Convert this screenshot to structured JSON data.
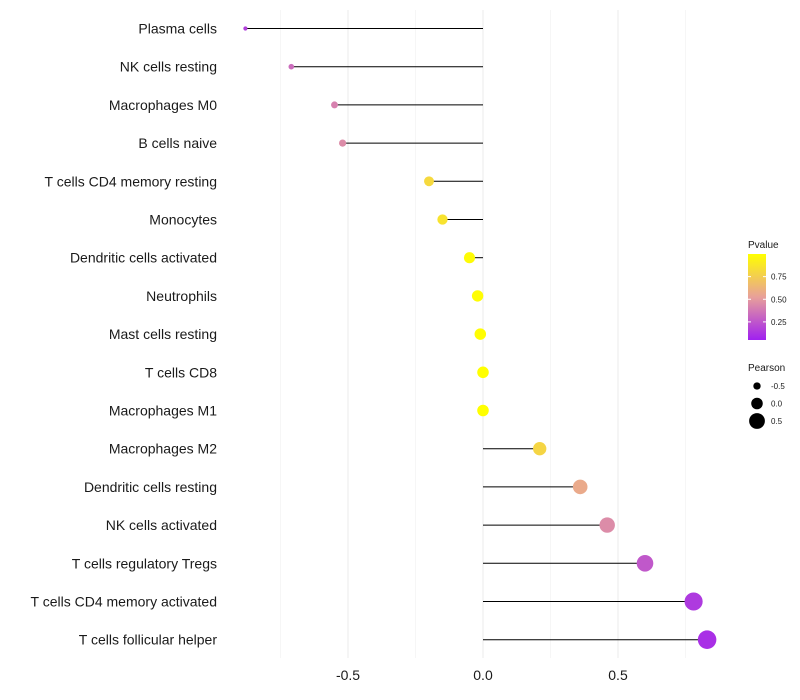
{
  "chart_data": {
    "type": "lollipop",
    "xlim": [
      -0.9,
      0.85
    ],
    "x_ticks": [
      -0.5,
      0.0,
      0.5
    ],
    "x_tick_labels": [
      "-0.5",
      "0.0",
      "0.5"
    ],
    "categories": [
      "Plasma cells",
      "NK cells resting",
      "Macrophages M0",
      "B cells naive",
      "T cells CD4 memory resting",
      "Monocytes",
      "Dendritic cells activated",
      "Neutrophils",
      "Mast cells resting",
      "T cells CD8",
      "Macrophages M1",
      "Macrophages M2",
      "Dendritic cells resting",
      "NK cells activated",
      "T cells regulatory  Tregs",
      "T cells CD4 memory activated",
      "T cells follicular helper"
    ],
    "pearson": [
      -0.88,
      -0.71,
      -0.55,
      -0.52,
      -0.2,
      -0.15,
      -0.05,
      -0.02,
      -0.01,
      0.0,
      0.0,
      0.21,
      0.36,
      0.46,
      0.6,
      0.78,
      0.83
    ],
    "pvalue": [
      0.12,
      0.3,
      0.38,
      0.42,
      0.8,
      0.85,
      0.98,
      0.99,
      0.99,
      1.0,
      1.0,
      0.78,
      0.55,
      0.42,
      0.22,
      0.1,
      0.06
    ],
    "legend": {
      "color_title": "Pvalue",
      "color_ticks": [
        0.75,
        0.5,
        0.25
      ],
      "color_tick_labels": [
        "0.75",
        "0.50",
        "0.25"
      ],
      "color_low": "#a020f0",
      "color_mid": "#e8a09a",
      "color_high": "#ffff00",
      "size_title": "Pearson",
      "size_values": [
        -0.5,
        0.0,
        0.5
      ],
      "size_labels": [
        "-0.5",
        "0.0",
        "0.5"
      ]
    }
  }
}
